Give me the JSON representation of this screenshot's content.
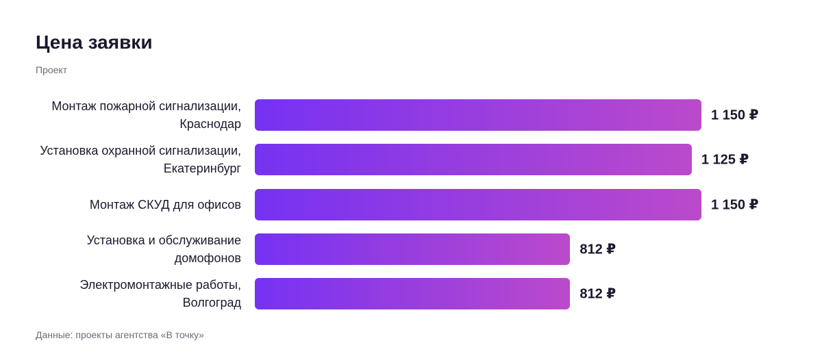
{
  "chart_data": {
    "type": "bar",
    "orientation": "horizontal",
    "title": "Цена заявки",
    "category_header": "Проект",
    "categories": [
      "Монтаж пожарной сигнализации, Краснодар",
      "Установка охранной сигнализации, Екатеринбург",
      "Монтаж СКУД для офисов",
      "Установка и обслуживание домофонов",
      "Электромонтажные работы, Волгоград"
    ],
    "values": [
      1150,
      1125,
      1150,
      812,
      812
    ],
    "value_labels": [
      "1 150 ₽",
      "1 125 ₽",
      "1 150 ₽",
      "812 ₽",
      "812 ₽"
    ],
    "gradient": [
      "#7632f2",
      "#bb4acb"
    ],
    "source": "Данные: проекты агентства «В точку»"
  }
}
